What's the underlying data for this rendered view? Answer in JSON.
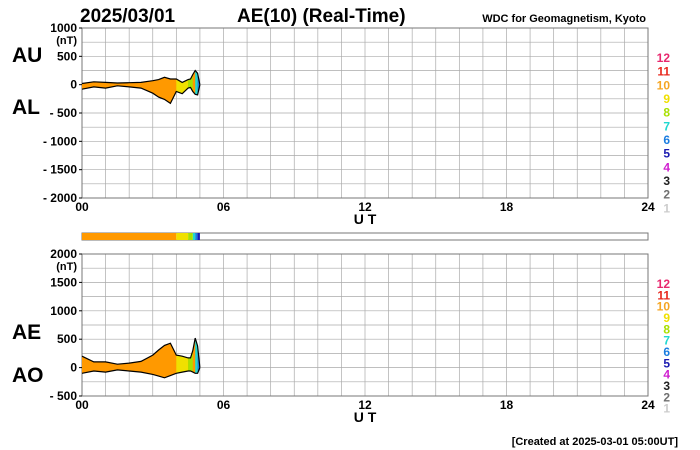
{
  "header": {
    "date": "2025/03/01",
    "title": "AE(10) (Real-Time)",
    "source": "WDC for Geomagnetism, Kyoto"
  },
  "footer": {
    "created": "[Created at 2025-03-01 05:00UT]"
  },
  "legend": {
    "items": [
      {
        "label": "12",
        "color": "#e8286e"
      },
      {
        "label": "11",
        "color": "#e8281e"
      },
      {
        "label": "10",
        "color": "#f5a623"
      },
      {
        "label": "9",
        "color": "#f0e000"
      },
      {
        "label": "8",
        "color": "#a8e000"
      },
      {
        "label": "7",
        "color": "#20d8d0"
      },
      {
        "label": "6",
        "color": "#1a7de0"
      },
      {
        "label": "5",
        "color": "#1a1ab0"
      },
      {
        "label": "4",
        "color": "#d020d0"
      },
      {
        "label": "3",
        "color": "#202020"
      },
      {
        "label": "2",
        "color": "#707070"
      },
      {
        "label": "1",
        "color": "#cccccc"
      }
    ]
  },
  "colorbar": {
    "segments": [
      {
        "start": 0.0,
        "end": 4.0,
        "color": "#ff9900"
      },
      {
        "start": 4.0,
        "end": 4.5,
        "color": "#f0e000"
      },
      {
        "start": 4.5,
        "end": 4.7,
        "color": "#a8e000"
      },
      {
        "start": 4.7,
        "end": 4.8,
        "color": "#20d8d0"
      },
      {
        "start": 4.8,
        "end": 4.9,
        "color": "#1a7de0"
      },
      {
        "start": 4.9,
        "end": 5.0,
        "color": "#1a1ab0"
      }
    ]
  },
  "chart_data": [
    {
      "type": "area",
      "xlim": [
        0,
        24
      ],
      "ylim": [
        -2000,
        1000
      ],
      "xticks": [
        "00",
        "06",
        "12",
        "18",
        "24"
      ],
      "xtick_values": [
        0,
        6,
        12,
        18,
        24
      ],
      "yticks": [
        "1000",
        "500",
        "0",
        "- 500",
        "- 1000",
        "- 1500",
        "- 2000"
      ],
      "ytick_values": [
        1000,
        500,
        0,
        -500,
        -1000,
        -1500,
        -2000
      ],
      "ylabel_unit": "(nT)",
      "xlabel": "U T",
      "grid": true,
      "side_labels": [
        "AU",
        "AL"
      ],
      "x": [
        0,
        0.5,
        1,
        1.5,
        2,
        2.5,
        3,
        3.25,
        3.5,
        3.75,
        4,
        4.25,
        4.5,
        4.6,
        4.7,
        4.8,
        4.9,
        5.0
      ],
      "series": [
        {
          "name": "AU",
          "values": [
            20,
            50,
            40,
            30,
            35,
            40,
            70,
            90,
            130,
            100,
            100,
            40,
            90,
            100,
            180,
            250,
            200,
            0
          ]
        },
        {
          "name": "AL",
          "values": [
            -80,
            -40,
            -60,
            -20,
            -40,
            -60,
            -150,
            -220,
            -260,
            -330,
            -120,
            -160,
            -60,
            -50,
            -120,
            -170,
            -180,
            0
          ]
        }
      ]
    },
    {
      "type": "area",
      "xlim": [
        0,
        24
      ],
      "ylim": [
        -500,
        2000
      ],
      "xticks": [
        "00",
        "06",
        "12",
        "18",
        "24"
      ],
      "xtick_values": [
        0,
        6,
        12,
        18,
        24
      ],
      "yticks": [
        "2000",
        "1500",
        "1000",
        "500",
        "0",
        "- 500"
      ],
      "ytick_values": [
        2000,
        1500,
        1000,
        500,
        0,
        -500
      ],
      "ylabel_unit": "(nT)",
      "xlabel": "U T",
      "grid": true,
      "side_labels": [
        "AE",
        "AO"
      ],
      "x": [
        0,
        0.5,
        1,
        1.5,
        2,
        2.5,
        3,
        3.25,
        3.5,
        3.75,
        4,
        4.25,
        4.5,
        4.6,
        4.7,
        4.8,
        4.9,
        5.0
      ],
      "series": [
        {
          "name": "AE",
          "values": [
            200,
            100,
            100,
            60,
            80,
            110,
            220,
            310,
            390,
            430,
            220,
            200,
            170,
            170,
            300,
            520,
            380,
            0
          ]
        },
        {
          "name": "AO",
          "values": [
            -100,
            -60,
            -80,
            -40,
            -60,
            -80,
            -120,
            -150,
            -180,
            -140,
            -100,
            -80,
            -60,
            -60,
            -80,
            -100,
            -100,
            0
          ]
        }
      ]
    }
  ]
}
